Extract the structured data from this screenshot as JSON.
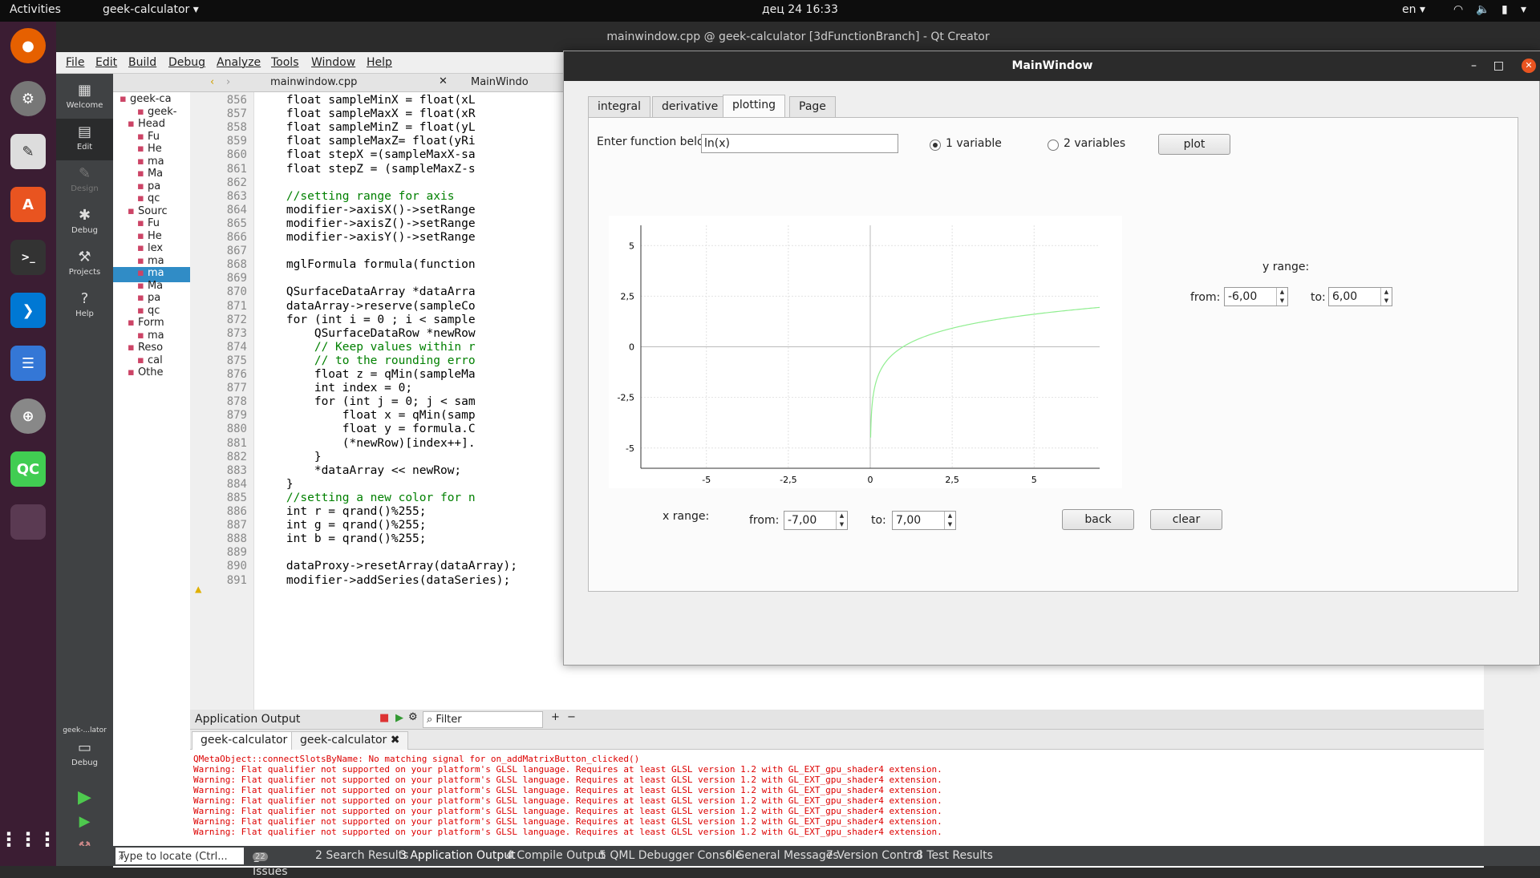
{
  "topbar": {
    "activities": "Activities",
    "app_menu": "geek-calculator",
    "clock": "дец 24  16:33",
    "lang": "en"
  },
  "qtcreator": {
    "title": "mainwindow.cpp @ geek-calculator [3dFunctionBranch] - Qt Creator",
    "menu": [
      "File",
      "Edit",
      "Build",
      "Debug",
      "Analyze",
      "Tools",
      "Window",
      "Help"
    ],
    "modes": [
      "Welcome",
      "Edit",
      "Design",
      "Debug",
      "Projects",
      "Help"
    ],
    "kit_label": "geek-...lator",
    "kit_mode": "Debug",
    "open_file": "mainwindow.cpp",
    "second_tab": "MainWindo",
    "tree": [
      "geek-ca",
      "geek-",
      "Head",
      "Fu",
      "He",
      "ma",
      "Ma",
      "pa",
      "qc",
      "Sourc",
      "Fu",
      "He",
      "lex",
      "ma",
      "ma",
      "Ma",
      "pa",
      "qc",
      "Form",
      "ma",
      "Reso",
      "cal",
      "Othe"
    ],
    "line_numbers": [
      "856",
      "857",
      "858",
      "859",
      "860",
      "861",
      "862",
      "863",
      "864",
      "865",
      "866",
      "867",
      "868",
      "869",
      "870",
      "871",
      "872",
      "873",
      "874",
      "875",
      "876",
      "877",
      "878",
      "879",
      "880",
      "881",
      "882",
      "883",
      "884",
      "885",
      "886",
      "887",
      "888",
      "889",
      "890",
      "891"
    ],
    "code": [
      "    float sampleMinX = float(xL",
      "    float sampleMaxX = float(xR",
      "    float sampleMinZ = float(yL",
      "    float sampleMaxZ= float(yRi",
      "    float stepX =(sampleMaxX-sa",
      "    float stepZ = (sampleMaxZ-s",
      "",
      "    //setting range for axis",
      "    modifier->axisX()->setRange",
      "    modifier->axisZ()->setRange",
      "    modifier->axisY()->setRange",
      "",
      "    mglFormula formula(function",
      "",
      "    QSurfaceDataArray *dataArra",
      "    dataArray->reserve(sampleCo",
      "    for (int i = 0 ; i < sample",
      "        QSurfaceDataRow *newRow",
      "        // Keep values within r",
      "        // to the rounding erro",
      "        float z = qMin(sampleMa",
      "        int index = 0;",
      "        for (int j = 0; j < sam",
      "            float x = qMin(samp",
      "            float y = formula.C",
      "            (*newRow)[index++].",
      "        }",
      "        *dataArray << newRow;",
      "    }",
      "    //setting a new color for n",
      "    int r = qrand()%255;",
      "    int g = qrand()%255;",
      "    int b = qrand()%255;",
      "",
      "    dataProxy->resetArray(dataArray);",
      "    modifier->addSeries(dataSeries);"
    ],
    "output": {
      "pane_title": "Application Output",
      "filter_placeholder": "Filter",
      "tabs": [
        "geek-calculator",
        "geek-calculator"
      ],
      "lines": [
        "QMetaObject::connectSlotsByName: No matching signal for on_addMatrixButton_clicked()",
        "Warning: Flat qualifier not supported on your platform's GLSL language. Requires at least GLSL version 1.2 with GL_EXT_gpu_shader4 extension.",
        "Warning: Flat qualifier not supported on your platform's GLSL language. Requires at least GLSL version 1.2 with GL_EXT_gpu_shader4 extension.",
        "Warning: Flat qualifier not supported on your platform's GLSL language. Requires at least GLSL version 1.2 with GL_EXT_gpu_shader4 extension.",
        "Warning: Flat qualifier not supported on your platform's GLSL language. Requires at least GLSL version 1.2 with GL_EXT_gpu_shader4 extension.",
        "Warning: Flat qualifier not supported on your platform's GLSL language. Requires at least GLSL version 1.2 with GL_EXT_gpu_shader4 extension.",
        "Warning: Flat qualifier not supported on your platform's GLSL language. Requires at least GLSL version 1.2 with GL_EXT_gpu_shader4 extension.",
        "Warning: Flat qualifier not supported on your platform's GLSL language. Requires at least GLSL version 1.2 with GL_EXT_gpu_shader4 extension."
      ]
    },
    "status": {
      "locate": "Type to locate (Ctrl...",
      "items": [
        "1  Issues",
        "2  Search Results",
        "3  Application Output",
        "4  Compile Output",
        "5  QML Debugger Console",
        "6  General Messages",
        "7  Version Control",
        "8  Test Results"
      ],
      "issues_count": "22"
    }
  },
  "mainwindow": {
    "title": "MainWindow",
    "tabs": [
      "integral",
      "derivative",
      "plotting",
      "Page"
    ],
    "selected_tab": "plotting",
    "function_label": "Enter function below:",
    "function_value": "ln(x)",
    "radio_1": "1 variable",
    "radio_2": "2 variables",
    "radio_selected": "1 variable",
    "plot_button": "plot",
    "y_range_label": "y range:",
    "y_from_label": "from:",
    "y_from_value": "-6,00",
    "y_to_label": "to:",
    "y_to_value": "6,00",
    "x_range_label": "x range:",
    "x_from_label": "from:",
    "x_from_value": "-7,00",
    "x_to_label": "to:",
    "x_to_value": "7,00",
    "back_button": "back",
    "clear_button": "clear"
  },
  "chart_data": {
    "type": "line",
    "series": [
      {
        "function": "ln(x)",
        "color": "#90ee90"
      }
    ],
    "xlim": [
      -7,
      7
    ],
    "ylim": [
      -6,
      6
    ],
    "x_ticks": [
      "-5",
      "-2,5",
      "0",
      "2,5",
      "5"
    ],
    "y_ticks": [
      "5",
      "2,5",
      "0",
      "-2,5",
      "-5"
    ],
    "x_tick_values": [
      -5,
      -2.5,
      0,
      2.5,
      5
    ],
    "y_tick_values": [
      5,
      2.5,
      0,
      -2.5,
      -5
    ],
    "grid": true
  },
  "colors": {
    "dock_bg": "#3b1d33",
    "curve": "#90ee90",
    "log_text": "#dd0000"
  }
}
